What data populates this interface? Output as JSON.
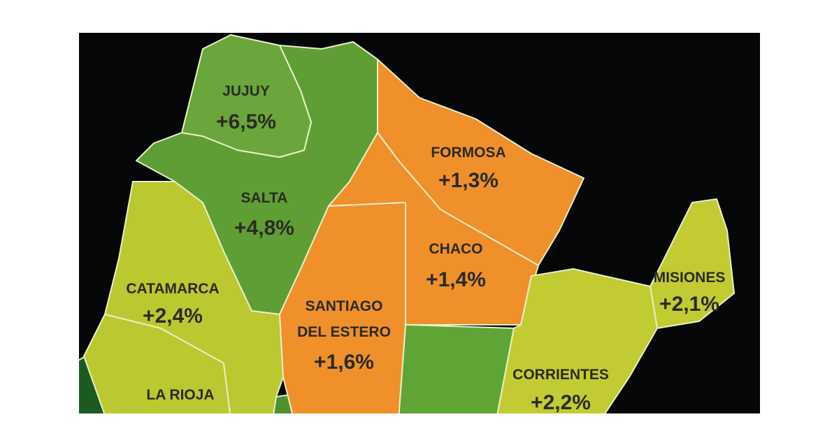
{
  "regions": [
    {
      "name": "JUJUY",
      "label": "+6,5%"
    },
    {
      "name": "SALTA",
      "label": "+4,8%"
    },
    {
      "name": "FORMOSA",
      "label": "+1,3%"
    },
    {
      "name": "CHACO",
      "label": "+1,4%"
    },
    {
      "name": [
        "SANTIAGO",
        "DEL ESTERO"
      ],
      "label": "+1,6%"
    },
    {
      "name": "CATAMARCA",
      "label": "+2,4%"
    },
    {
      "name": "MISIONES",
      "label": "+2,1%"
    },
    {
      "name": "CORRIENTES",
      "label": "+2,2%"
    },
    {
      "name": "LA RIOJA"
    }
  ]
}
